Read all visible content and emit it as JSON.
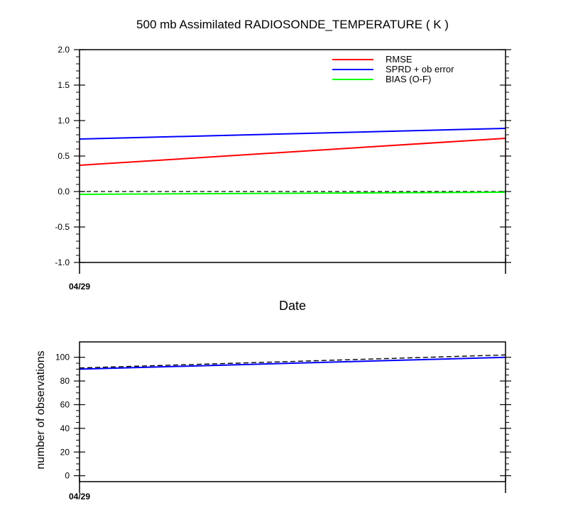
{
  "chart_data": [
    {
      "type": "line",
      "title": "500 mb Assimilated RADIOSONDE_TEMPERATURE ( K )",
      "xlabel": "Date",
      "ylabel": "",
      "x_tick_labels": [
        "04/29"
      ],
      "x_range": [
        0,
        1
      ],
      "ylim": [
        -1.0,
        2.0
      ],
      "y_ticks": [
        "-1.0",
        "-0.5",
        "0.0",
        "0.5",
        "1.0",
        "1.5",
        "2.0"
      ],
      "legend_position": "top-right",
      "series": [
        {
          "name": "RMSE",
          "color": "#ff0000",
          "x": [
            0,
            1
          ],
          "values": [
            0.37,
            0.75
          ]
        },
        {
          "name": "SPRD + ob error",
          "color": "#0000ff",
          "x": [
            0,
            1
          ],
          "values": [
            0.74,
            0.89
          ]
        },
        {
          "name": "BIAS (O-F)",
          "color": "#00ff00",
          "x": [
            0,
            1
          ],
          "values": [
            -0.04,
            -0.01
          ]
        }
      ],
      "reference_line": {
        "value": 0.0,
        "style": "dashed",
        "color": "#000000"
      }
    },
    {
      "type": "line",
      "title": "",
      "xlabel": "",
      "ylabel": "number of observations",
      "x_tick_labels": [
        "04/29"
      ],
      "x_range": [
        0,
        1
      ],
      "ylim": [
        -5,
        113
      ],
      "y_ticks": [
        "0",
        "20",
        "40",
        "60",
        "80",
        "100"
      ],
      "series": [
        {
          "color": "#0000ff",
          "style": "solid",
          "x": [
            0,
            1
          ],
          "values": [
            90,
            100
          ]
        },
        {
          "color": "#000000",
          "style": "dashed",
          "x": [
            0,
            1
          ],
          "values": [
            91,
            102
          ]
        }
      ]
    }
  ]
}
